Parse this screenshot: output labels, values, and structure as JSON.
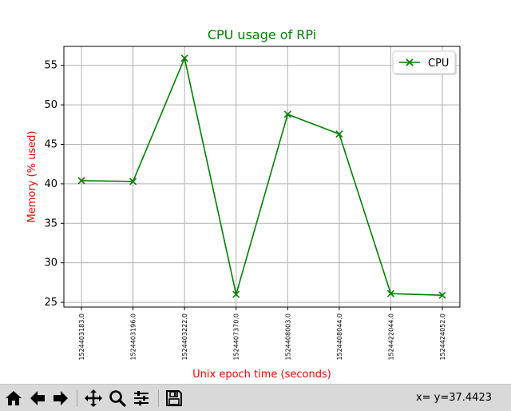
{
  "chart_data": {
    "type": "line",
    "title": "CPU usage of RPi",
    "xlabel": "Unix epoch time (seconds)",
    "ylabel": "Memory (% used)",
    "categories": [
      "1524403183.0",
      "1524403196.0",
      "1524403222.0",
      "1524407370.0",
      "1524408003.0",
      "1524408044.0",
      "1524422044.0",
      "1524424052.0"
    ],
    "series": [
      {
        "name": "CPU",
        "values": [
          40.4,
          40.3,
          55.9,
          26.0,
          48.8,
          46.3,
          26.1,
          25.9
        ],
        "color": "#008000",
        "marker": "x"
      }
    ],
    "ylim": [
      24.4,
      57.4
    ],
    "yticks": [
      25,
      30,
      35,
      40,
      45,
      50,
      55
    ],
    "grid": true,
    "legend_position": "top-right",
    "title_color": "#008000",
    "label_color": "#ff0000"
  },
  "toolbar": {
    "buttons": [
      "home-icon",
      "back-arrow-icon",
      "forward-arrow-icon",
      "pan-icon",
      "zoom-icon",
      "configure-subplots-icon",
      "save-icon"
    ],
    "coord_readout": "x= y=37.4423"
  }
}
